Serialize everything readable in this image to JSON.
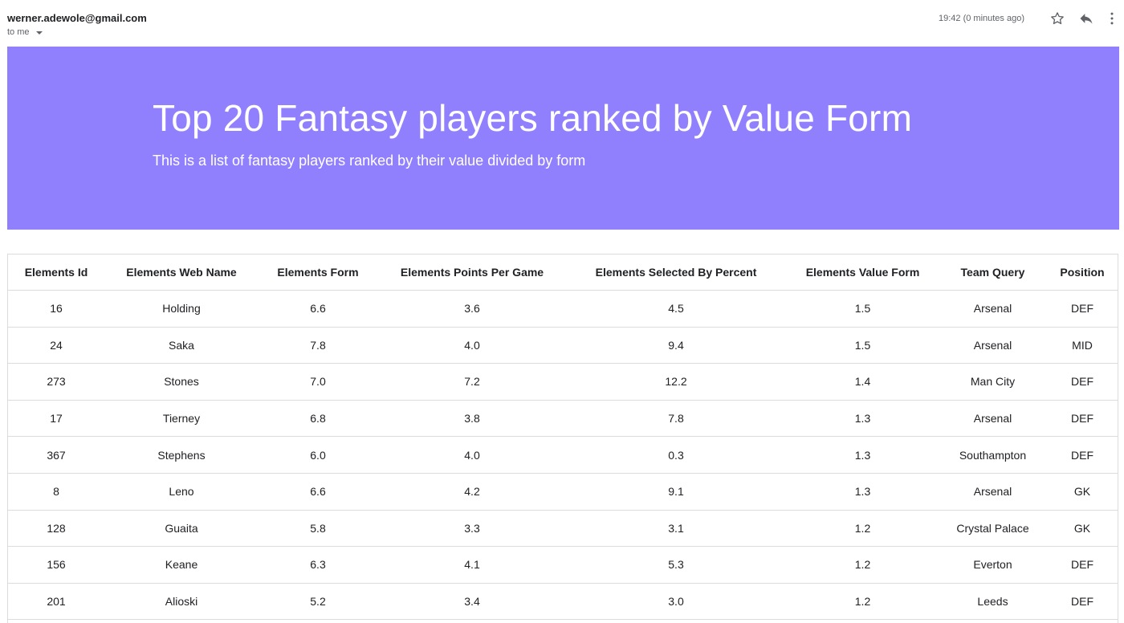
{
  "email": {
    "sender": "werner.adewole@gmail.com",
    "recipient": "to me",
    "timestamp": "19:42 (0 minutes ago)",
    "icons": {
      "star": "star-icon",
      "reply": "reply-icon",
      "more": "more-vertical-icon",
      "dropdown": "chevron-down-icon"
    }
  },
  "banner": {
    "title": "Top 20 Fantasy players ranked by Value Form",
    "subtitle": "This is a list of fantasy players ranked by their value divided by form",
    "background_color": "#9180fd"
  },
  "table": {
    "headers": [
      "Elements Id",
      "Elements Web Name",
      "Elements Form",
      "Elements Points Per Game",
      "Elements Selected By Percent",
      "Elements Value Form",
      "Team Query",
      "Position"
    ],
    "rows": [
      [
        "16",
        "Holding",
        "6.6",
        "3.6",
        "4.5",
        "1.5",
        "Arsenal",
        "DEF"
      ],
      [
        "24",
        "Saka",
        "7.8",
        "4.0",
        "9.4",
        "1.5",
        "Arsenal",
        "MID"
      ],
      [
        "273",
        "Stones",
        "7.0",
        "7.2",
        "12.2",
        "1.4",
        "Man City",
        "DEF"
      ],
      [
        "17",
        "Tierney",
        "6.8",
        "3.8",
        "7.8",
        "1.3",
        "Arsenal",
        "DEF"
      ],
      [
        "367",
        "Stephens",
        "6.0",
        "4.0",
        "0.3",
        "1.3",
        "Southampton",
        "DEF"
      ],
      [
        "8",
        "Leno",
        "6.6",
        "4.2",
        "9.1",
        "1.3",
        "Arsenal",
        "GK"
      ],
      [
        "128",
        "Guaita",
        "5.8",
        "3.3",
        "3.1",
        "1.2",
        "Crystal Palace",
        "GK"
      ],
      [
        "156",
        "Keane",
        "6.3",
        "4.1",
        "5.3",
        "1.2",
        "Everton",
        "DEF"
      ],
      [
        "201",
        "Alioski",
        "5.2",
        "3.4",
        "3.0",
        "1.2",
        "Leeds",
        "DEF"
      ]
    ]
  }
}
